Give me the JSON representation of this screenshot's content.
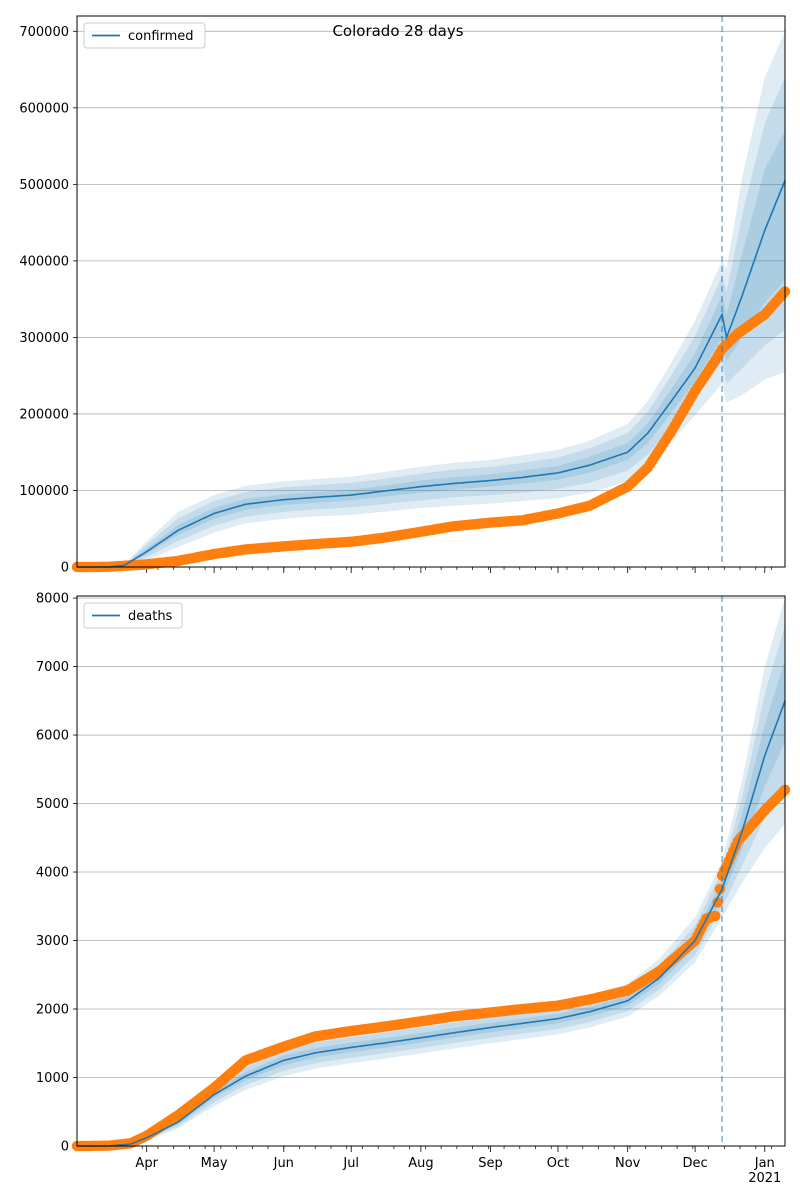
{
  "figure": {
    "title": "Colorado 28 days",
    "forecast_start_date": "2020-12-13"
  },
  "chart_data": [
    {
      "type": "line",
      "title": "Colorado 28 days",
      "xlabel": "",
      "ylabel": "",
      "xlim": [
        "2020-03-01",
        "2021-01-10"
      ],
      "ylim": [
        0,
        720000
      ],
      "yticks": [
        0,
        100000,
        200000,
        300000,
        400000,
        500000,
        600000,
        700000
      ],
      "grid": "y",
      "legend": {
        "position": "top-left",
        "entries": [
          "confirmed"
        ]
      },
      "x_tick_labels": [
        "Apr",
        "May",
        "Jun",
        "Jul",
        "Aug",
        "Sep",
        "Oct",
        "Nov",
        "Dec",
        "Jan\n2021"
      ],
      "series": [
        {
          "name": "confirmed",
          "kind": "model-median",
          "color": "#1f77b4",
          "x": [
            "2020-03-01",
            "2020-03-15",
            "2020-03-22",
            "2020-04-01",
            "2020-04-15",
            "2020-05-01",
            "2020-05-15",
            "2020-06-01",
            "2020-06-15",
            "2020-07-01",
            "2020-07-15",
            "2020-08-01",
            "2020-08-15",
            "2020-09-01",
            "2020-09-15",
            "2020-10-01",
            "2020-10-15",
            "2020-11-01",
            "2020-11-10",
            "2020-11-20",
            "2020-12-01",
            "2020-12-13",
            "2020-12-15",
            "2020-12-22",
            "2021-01-01",
            "2021-01-10"
          ],
          "y": [
            0,
            0,
            2000,
            20000,
            48000,
            70000,
            82000,
            88000,
            91000,
            94000,
            99000,
            105000,
            109000,
            113000,
            117000,
            123000,
            133000,
            150000,
            175000,
            215000,
            260000,
            330000,
            300000,
            355000,
            440000,
            505000
          ]
        },
        {
          "name": "observed",
          "kind": "observed",
          "color": "#ff7f0e",
          "x": [
            "2020-03-01",
            "2020-03-15",
            "2020-04-01",
            "2020-04-15",
            "2020-05-01",
            "2020-05-15",
            "2020-06-01",
            "2020-06-15",
            "2020-07-01",
            "2020-07-15",
            "2020-08-01",
            "2020-08-15",
            "2020-09-01",
            "2020-09-15",
            "2020-10-01",
            "2020-10-15",
            "2020-11-01",
            "2020-11-10",
            "2020-11-20",
            "2020-12-01",
            "2020-12-10",
            "2020-12-13",
            "2020-12-20",
            "2021-01-01",
            "2021-01-10"
          ],
          "y": [
            0,
            300,
            3500,
            8000,
            17000,
            23000,
            27000,
            30000,
            33000,
            38000,
            46000,
            53000,
            58000,
            61000,
            70000,
            80000,
            105000,
            130000,
            175000,
            230000,
            270000,
            285000,
            305000,
            330000,
            360000
          ]
        }
      ],
      "bands": {
        "color": "#1f77b4",
        "lower": [
          [
            0,
            0,
            1800,
            17000,
            42000,
            63000,
            75000,
            81000,
            84000,
            87000,
            92000,
            97000,
            101000,
            105000,
            109000,
            114000,
            123000,
            140000,
            162000,
            200000,
            243000,
            300000,
            270000,
            300000,
            345000,
            375000
          ],
          [
            0,
            0,
            1400,
            13000,
            34000,
            54000,
            66000,
            72000,
            75000,
            78000,
            82000,
            87000,
            91000,
            94000,
            97000,
            102000,
            110000,
            126000,
            147000,
            182000,
            220000,
            268000,
            240000,
            260000,
            290000,
            310000
          ],
          [
            0,
            0,
            1000,
            9000,
            26000,
            45000,
            57000,
            63000,
            66000,
            68000,
            72000,
            77000,
            80000,
            83000,
            86000,
            90000,
            97000,
            112000,
            132000,
            164000,
            198000,
            240000,
            215000,
            225000,
            245000,
            255000
          ]
        ],
        "upper": [
          [
            0,
            0,
            2300,
            24000,
            55000,
            77000,
            89000,
            95000,
            98000,
            101000,
            106000,
            113000,
            117000,
            121000,
            126000,
            132000,
            144000,
            162000,
            188000,
            231000,
            279000,
            355000,
            330000,
            410000,
            520000,
            570000
          ],
          [
            0,
            0,
            2700,
            29000,
            64000,
            86000,
            98000,
            104000,
            107000,
            110000,
            115000,
            122000,
            127000,
            131000,
            136000,
            143000,
            155000,
            175000,
            203000,
            248000,
            302000,
            380000,
            360000,
            460000,
            580000,
            640000
          ],
          [
            0,
            0,
            3100,
            34000,
            72000,
            94000,
            106000,
            112000,
            115000,
            118000,
            124000,
            131000,
            136000,
            140000,
            146000,
            153000,
            165000,
            187000,
            217000,
            265000,
            322000,
            400000,
            390000,
            510000,
            640000,
            700000
          ]
        ]
      }
    },
    {
      "type": "line",
      "title": "",
      "xlabel": "",
      "ylabel": "",
      "xlim": [
        "2020-03-01",
        "2021-01-10"
      ],
      "ylim": [
        0,
        8030
      ],
      "yticks": [
        0,
        1000,
        2000,
        3000,
        4000,
        5000,
        6000,
        7000,
        8000
      ],
      "grid": "y",
      "legend": {
        "position": "top-left",
        "entries": [
          "deaths"
        ]
      },
      "x_tick_labels": [
        "Apr",
        "May",
        "Jun",
        "Jul",
        "Aug",
        "Sep",
        "Oct",
        "Nov",
        "Dec",
        "Jan\n2021"
      ],
      "series": [
        {
          "name": "deaths",
          "kind": "model-median",
          "color": "#1f77b4",
          "x": [
            "2020-03-01",
            "2020-03-15",
            "2020-03-25",
            "2020-04-01",
            "2020-04-15",
            "2020-05-01",
            "2020-05-15",
            "2020-06-01",
            "2020-06-15",
            "2020-07-01",
            "2020-07-15",
            "2020-08-01",
            "2020-08-15",
            "2020-09-01",
            "2020-09-15",
            "2020-10-01",
            "2020-10-15",
            "2020-11-01",
            "2020-11-15",
            "2020-12-01",
            "2020-12-13",
            "2020-12-22",
            "2021-01-01",
            "2021-01-10"
          ],
          "y": [
            0,
            0,
            30,
            120,
            350,
            750,
            1020,
            1250,
            1360,
            1440,
            1500,
            1580,
            1650,
            1730,
            1790,
            1860,
            1960,
            2120,
            2450,
            3000,
            3750,
            4600,
            5700,
            6500
          ]
        },
        {
          "name": "observed",
          "kind": "observed",
          "color": "#ff7f0e",
          "x": [
            "2020-03-01",
            "2020-03-15",
            "2020-03-25",
            "2020-04-01",
            "2020-04-15",
            "2020-05-01",
            "2020-05-15",
            "2020-06-01",
            "2020-06-15",
            "2020-07-01",
            "2020-07-15",
            "2020-08-01",
            "2020-08-15",
            "2020-09-01",
            "2020-09-15",
            "2020-10-01",
            "2020-10-15",
            "2020-11-01",
            "2020-11-15",
            "2020-12-01",
            "2020-12-06",
            "2020-12-10",
            "2020-12-13",
            "2020-12-20",
            "2021-01-01",
            "2021-01-10"
          ],
          "y": [
            0,
            5,
            40,
            150,
            450,
            850,
            1250,
            1450,
            1600,
            1680,
            1740,
            1820,
            1890,
            1950,
            2000,
            2050,
            2140,
            2270,
            2550,
            3000,
            3320,
            3360,
            3950,
            4450,
            4900,
            5200
          ]
        }
      ],
      "bands": {
        "color": "#1f77b4",
        "lower": [
          [
            0,
            0,
            25,
            110,
            320,
            700,
            960,
            1180,
            1290,
            1370,
            1430,
            1510,
            1580,
            1660,
            1720,
            1790,
            1890,
            2050,
            2370,
            2900,
            3620,
            4350,
            5250,
            5900
          ],
          [
            0,
            0,
            20,
            95,
            290,
            640,
            890,
            1100,
            1210,
            1290,
            1350,
            1430,
            1500,
            1580,
            1640,
            1710,
            1810,
            1970,
            2280,
            2790,
            3480,
            4100,
            4800,
            5300
          ],
          [
            0,
            0,
            15,
            80,
            260,
            580,
            820,
            1020,
            1130,
            1210,
            1270,
            1350,
            1420,
            1500,
            1560,
            1630,
            1730,
            1890,
            2190,
            2680,
            3340,
            3850,
            4350,
            4700
          ]
        ],
        "upper": [
          [
            0,
            0,
            35,
            135,
            380,
            800,
            1080,
            1320,
            1430,
            1510,
            1570,
            1650,
            1720,
            1800,
            1860,
            1930,
            2030,
            2190,
            2530,
            3100,
            3880,
            4850,
            6150,
            7100
          ],
          [
            0,
            0,
            40,
            150,
            410,
            860,
            1150,
            1400,
            1510,
            1590,
            1650,
            1730,
            1800,
            1880,
            1940,
            2010,
            2110,
            2280,
            2630,
            3220,
            4020,
            5100,
            6600,
            7600
          ],
          [
            0,
            0,
            45,
            165,
            440,
            920,
            1220,
            1480,
            1590,
            1670,
            1730,
            1810,
            1880,
            1960,
            2020,
            2090,
            2190,
            2370,
            2730,
            3340,
            4160,
            5350,
            7000,
            8000
          ]
        ]
      }
    }
  ]
}
